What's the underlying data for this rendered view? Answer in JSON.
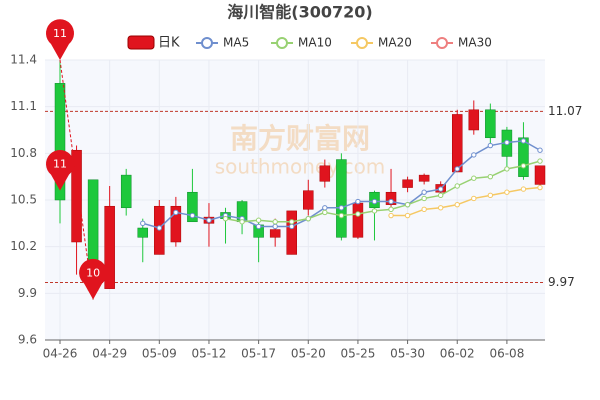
{
  "chart_data": {
    "type": "candlestick",
    "title": "海川智能(300720)",
    "watermark": "南方财富网",
    "watermark_sub": "southmoney.com",
    "candle_legend": "日K",
    "up_color": "#e0141e",
    "down_color": "#1ec83c",
    "categories": [
      "04-26",
      null,
      null,
      "04-29",
      null,
      null,
      "05-09",
      null,
      null,
      "05-12",
      null,
      null,
      "05-17",
      null,
      null,
      "05-20",
      null,
      null,
      "05-25",
      null,
      null,
      "05-30",
      null,
      null,
      "06-02",
      null,
      null,
      "06-08",
      null,
      null
    ],
    "open": [
      11.25,
      10.23,
      10.63,
      9.93,
      10.66,
      10.32,
      10.15,
      10.23,
      10.55,
      10.35,
      10.42,
      10.49,
      10.34,
      10.26,
      10.15,
      10.44,
      10.62,
      10.76,
      10.26,
      10.55,
      10.47,
      10.58,
      10.62,
      10.55,
      10.68,
      10.95,
      11.08,
      10.95,
      10.9,
      10.6
    ],
    "close": [
      10.5,
      10.82,
      9.92,
      10.46,
      10.45,
      10.26,
      10.46,
      10.46,
      10.36,
      10.39,
      10.38,
      10.36,
      10.26,
      10.31,
      10.43,
      10.56,
      10.72,
      10.26,
      10.48,
      10.45,
      10.55,
      10.63,
      10.66,
      10.6,
      11.05,
      11.08,
      10.9,
      10.78,
      10.65,
      10.72
    ],
    "high": [
      11.4,
      10.85,
      10.63,
      10.59,
      10.7,
      10.38,
      10.5,
      10.52,
      10.7,
      10.48,
      10.45,
      10.5,
      10.38,
      10.38,
      10.43,
      10.63,
      10.76,
      10.8,
      10.5,
      10.56,
      10.7,
      10.65,
      10.67,
      10.62,
      11.08,
      11.14,
      11.12,
      10.97,
      11.0,
      10.72
    ],
    "low": [
      10.35,
      10.02,
      9.86,
      9.93,
      10.4,
      10.1,
      10.15,
      10.2,
      10.36,
      10.2,
      10.22,
      10.28,
      10.1,
      10.2,
      10.15,
      10.4,
      10.58,
      10.24,
      10.25,
      10.24,
      10.45,
      10.55,
      10.6,
      10.53,
      10.68,
      10.92,
      10.84,
      10.7,
      10.63,
      10.58
    ],
    "series": [
      {
        "name": "MA5",
        "color": "#6f8fce",
        "values": [
          null,
          null,
          null,
          null,
          null,
          10.35,
          10.32,
          10.42,
          10.4,
          10.37,
          10.4,
          10.38,
          10.33,
          10.33,
          10.33,
          10.38,
          10.45,
          10.45,
          10.49,
          10.49,
          10.49,
          10.47,
          10.55,
          10.57,
          10.7,
          10.79,
          10.85,
          10.87,
          10.88,
          10.82
        ]
      },
      {
        "name": "MA10",
        "color": "#98d172",
        "values": [
          null,
          null,
          null,
          null,
          null,
          null,
          null,
          null,
          null,
          null,
          10.38,
          10.36,
          10.37,
          10.36,
          10.36,
          10.38,
          10.42,
          10.4,
          10.41,
          10.43,
          10.44,
          10.47,
          10.51,
          10.53,
          10.59,
          10.64,
          10.65,
          10.7,
          10.72,
          10.75
        ]
      },
      {
        "name": "MA20",
        "color": "#f5c863",
        "values": [
          null,
          null,
          null,
          null,
          null,
          null,
          null,
          null,
          null,
          null,
          null,
          null,
          null,
          null,
          null,
          null,
          null,
          null,
          null,
          null,
          10.4,
          10.4,
          10.44,
          10.45,
          10.47,
          10.51,
          10.53,
          10.55,
          10.57,
          10.58
        ]
      },
      {
        "name": "MA30",
        "color": "#ee7f7f",
        "values": [
          null,
          null,
          null,
          null,
          null,
          null,
          null,
          null,
          null,
          null,
          null,
          null,
          null,
          null,
          null,
          null,
          null,
          null,
          null,
          null,
          null,
          null,
          null,
          null,
          null,
          null,
          null,
          null,
          null,
          null
        ]
      }
    ],
    "ylim": [
      9.6,
      11.4
    ],
    "yticks": [
      9.6,
      9.9,
      10.2,
      10.5,
      10.8,
      11.1,
      11.4
    ],
    "reference_lines": [
      11.07,
      9.97
    ],
    "annotations": [
      {
        "index": 0,
        "value": 11.4,
        "label": "11"
      },
      {
        "index": 0,
        "value": 10.56,
        "label": "11"
      },
      {
        "index": 2,
        "value": 9.86,
        "label": "10"
      }
    ],
    "grid": true
  }
}
